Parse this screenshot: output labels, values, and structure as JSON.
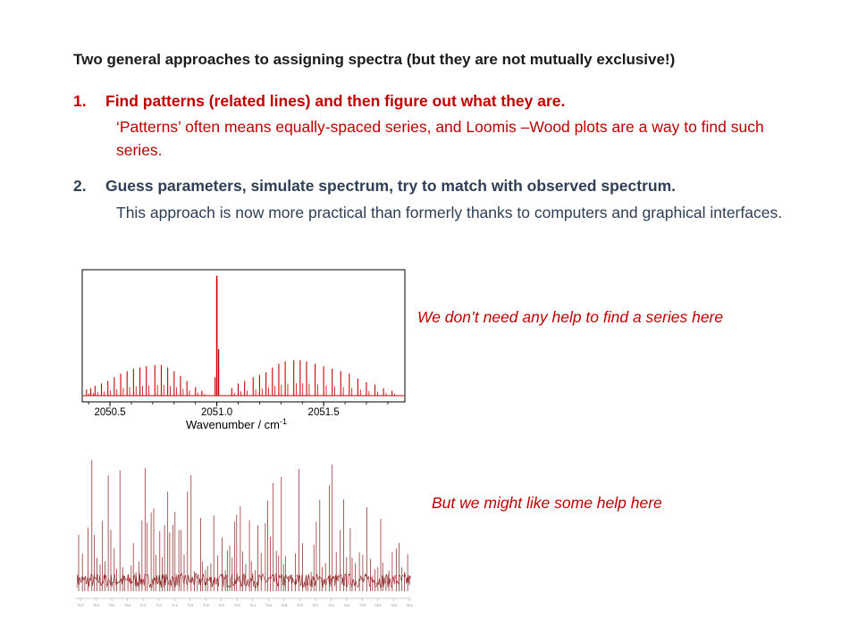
{
  "slide": {
    "title": "Two general approaches to assigning spectra (but they are not mutually exclusive!)",
    "items": [
      {
        "number": "1.",
        "heading": "Find patterns (related lines) and then figure out what they are.",
        "body": "‘Patterns’ often means equally-spaced series, and Loomis –Wood plots are a way to find such series."
      },
      {
        "number": "2.",
        "heading": "Guess parameters, simulate spectrum, try to match with observed spectrum.",
        "body": "This approach is now more practical than formerly thanks to computers and graphical interfaces."
      }
    ],
    "caption_top": "We don’t need any help to find a series here",
    "caption_bottom": "But we might like some help here"
  },
  "chart_data": [
    {
      "type": "line",
      "xlabel": "Wavenumber / cm",
      "xlabel_superscript": "-1",
      "xlim": [
        2050.37,
        2051.88
      ],
      "ylim": [
        0,
        1
      ],
      "xticks": [
        {
          "value": 2050.5,
          "label": "2050.5"
        },
        {
          "value": 2051.0,
          "label": "2051.0"
        },
        {
          "value": 2051.5,
          "label": "2051.5"
        }
      ],
      "color": "#cc0000",
      "center_line": {
        "x": 2051.0,
        "y": 0.98
      },
      "series_lines": [
        {
          "x": 2050.39,
          "y": 0.05
        },
        {
          "x": 2050.41,
          "y": 0.06
        },
        {
          "x": 2050.43,
          "y": 0.08
        },
        {
          "x": 2050.46,
          "y": 0.1
        },
        {
          "x": 2050.49,
          "y": 0.12
        },
        {
          "x": 2050.52,
          "y": 0.15
        },
        {
          "x": 2050.55,
          "y": 0.18
        },
        {
          "x": 2050.58,
          "y": 0.2
        },
        {
          "x": 2050.61,
          "y": 0.22
        },
        {
          "x": 2050.64,
          "y": 0.23
        },
        {
          "x": 2050.67,
          "y": 0.24
        },
        {
          "x": 2050.71,
          "y": 0.25
        },
        {
          "x": 2050.74,
          "y": 0.25
        },
        {
          "x": 2050.77,
          "y": 0.23
        },
        {
          "x": 2050.8,
          "y": 0.2
        },
        {
          "x": 2050.83,
          "y": 0.16
        },
        {
          "x": 2050.86,
          "y": 0.12
        },
        {
          "x": 2050.9,
          "y": 0.07
        },
        {
          "x": 2050.93,
          "y": 0.04
        },
        {
          "x": 2051.07,
          "y": 0.06
        },
        {
          "x": 2051.1,
          "y": 0.1
        },
        {
          "x": 2051.13,
          "y": 0.12
        },
        {
          "x": 2051.17,
          "y": 0.15
        },
        {
          "x": 2051.2,
          "y": 0.17
        },
        {
          "x": 2051.23,
          "y": 0.19
        },
        {
          "x": 2051.26,
          "y": 0.23
        },
        {
          "x": 2051.29,
          "y": 0.26
        },
        {
          "x": 2051.32,
          "y": 0.28
        },
        {
          "x": 2051.36,
          "y": 0.29
        },
        {
          "x": 2051.39,
          "y": 0.29
        },
        {
          "x": 2051.42,
          "y": 0.28
        },
        {
          "x": 2051.46,
          "y": 0.26
        },
        {
          "x": 2051.5,
          "y": 0.24
        },
        {
          "x": 2051.54,
          "y": 0.22
        },
        {
          "x": 2051.58,
          "y": 0.2
        },
        {
          "x": 2051.62,
          "y": 0.18
        },
        {
          "x": 2051.66,
          "y": 0.14
        },
        {
          "x": 2051.7,
          "y": 0.11
        },
        {
          "x": 2051.74,
          "y": 0.09
        },
        {
          "x": 2051.78,
          "y": 0.06
        },
        {
          "x": 2051.82,
          "y": 0.04
        }
      ]
    },
    {
      "type": "line",
      "color": "#8b1a1a",
      "tick_labels": [
        "70.2",
        "70.4",
        "70.6",
        "70.8",
        "71.0",
        "71.2",
        "71.4",
        "71.6",
        "71.8",
        "72.0",
        "72.2",
        "72.4",
        "72.6",
        "72.8",
        "73.0",
        "73.2",
        "73.4",
        "73.6",
        "73.8",
        "74.0",
        "74.2",
        "74.4"
      ]
    }
  ]
}
